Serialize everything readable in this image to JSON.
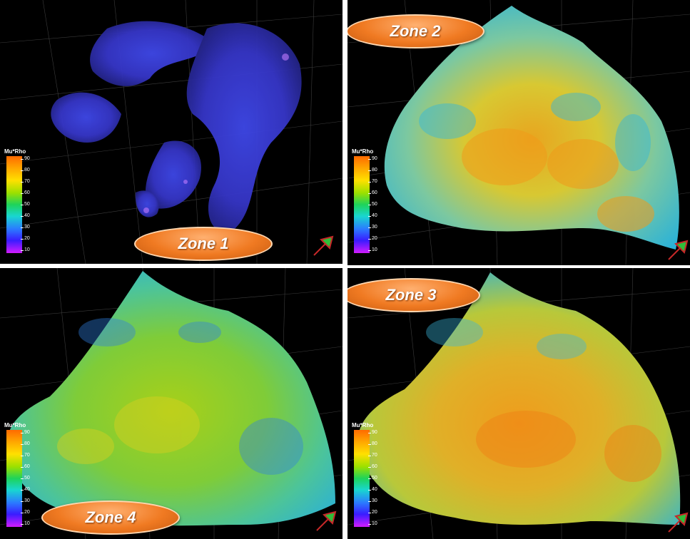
{
  "colorbar": {
    "title": "Mu*Rho",
    "ticks": [
      "90",
      "80",
      "70",
      "60",
      "50",
      "40",
      "30",
      "20",
      "10"
    ]
  },
  "zones": {
    "zone1": "Zone 1",
    "zone2": "Zone 2",
    "zone3": "Zone 3",
    "zone4": "Zone 4"
  },
  "colors": {
    "background": "#000000",
    "label_fill": "#f07a22",
    "arrow": "#2fbf3a"
  },
  "icons": [
    "compass-arrow-icon"
  ]
}
